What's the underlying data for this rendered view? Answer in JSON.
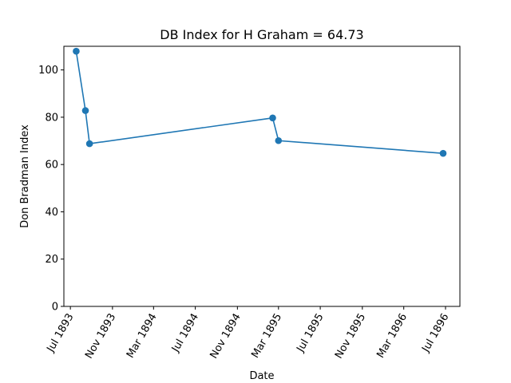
{
  "chart_data": {
    "type": "line",
    "title": "DB Index for H Graham = 64.73",
    "xlabel": "Date",
    "ylabel": "Don Bradman Index",
    "ylim": [
      0,
      110
    ],
    "yticks": [
      0,
      20,
      40,
      60,
      80,
      100
    ],
    "xlim": [
      "1893-06-12",
      "1896-08-12"
    ],
    "xticks": [
      {
        "date": "1893-07-01",
        "label": "Jul 1893"
      },
      {
        "date": "1893-11-01",
        "label": "Nov 1893"
      },
      {
        "date": "1894-03-01",
        "label": "Mar 1894"
      },
      {
        "date": "1894-07-01",
        "label": "Jul 1894"
      },
      {
        "date": "1894-11-01",
        "label": "Nov 1894"
      },
      {
        "date": "1895-03-01",
        "label": "Mar 1895"
      },
      {
        "date": "1895-07-01",
        "label": "Jul 1895"
      },
      {
        "date": "1895-11-01",
        "label": "Nov 1895"
      },
      {
        "date": "1896-03-01",
        "label": "Mar 1896"
      },
      {
        "date": "1896-07-01",
        "label": "Jul 1896"
      }
    ],
    "series": [
      {
        "color": "#1f77b4",
        "points": [
          {
            "x": "1893-07-18",
            "y": 107.9
          },
          {
            "x": "1893-08-14",
            "y": 82.8
          },
          {
            "x": "1893-08-26",
            "y": 68.8
          },
          {
            "x": "1895-02-12",
            "y": 79.7
          },
          {
            "x": "1895-03-01",
            "y": 70.1
          },
          {
            "x": "1896-06-24",
            "y": 64.73
          }
        ]
      }
    ],
    "grid": false,
    "legend": "none"
  }
}
